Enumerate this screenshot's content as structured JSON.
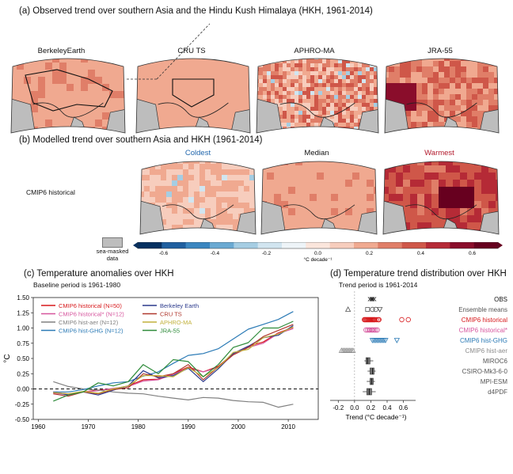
{
  "panel_a": {
    "title": "(a) Observed trend over southern Asia and the Hindu Kush Himalaya (HKH, 1961-2014)",
    "maps": [
      "BerkeleyEarth",
      "CRU TS",
      "APHRO-MA",
      "JRA-55"
    ]
  },
  "panel_b": {
    "title": "(b) Modelled trend over southern Asia and HKH (1961-2014)",
    "row_label": "CMIP6 historical",
    "maps": [
      {
        "label": "Coldest",
        "color": "#2166ac"
      },
      {
        "label": "Median",
        "color": "#111111"
      },
      {
        "label": "Warmest",
        "color": "#b2182b"
      }
    ]
  },
  "colorbar": {
    "ticks": [
      "-0.6",
      "-0.4",
      "-0.2",
      "0.0",
      "0.2",
      "0.4",
      "0.6"
    ],
    "unit": "°C decade⁻¹",
    "sea_mask_label": [
      "sea-masked",
      "data"
    ],
    "colors": [
      "#053061",
      "#1f5f9f",
      "#3b86c0",
      "#6aa9d2",
      "#a5cde3",
      "#d1e5f0",
      "#eef4f8",
      "#fbe6dc",
      "#f7cdbd",
      "#f0a990",
      "#e07e68",
      "#cf5749",
      "#b52a36",
      "#8a0d2b",
      "#67001f"
    ]
  },
  "chart_data": [
    {
      "type": "line",
      "title": "(c) Temperature anomalies over HKH",
      "subtitle": "Baseline period is 1961-1980",
      "ylabel": "°C",
      "xlim": [
        1959,
        2016
      ],
      "ylim": [
        -0.5,
        1.5
      ],
      "xticks": [
        "1960",
        "1970",
        "1980",
        "1990",
        "2000",
        "2010"
      ],
      "yticks": [
        "1.50",
        "1.25",
        "1.00",
        "0.75",
        "0.50",
        "0.25",
        "0.00",
        "-0.25",
        "-0.50"
      ],
      "x": [
        1963,
        1966,
        1969,
        1972,
        1975,
        1978,
        1981,
        1984,
        1987,
        1990,
        1993,
        1996,
        1999,
        2002,
        2005,
        2008,
        2011
      ],
      "series": [
        {
          "name": "CMIP6 historical (N=50)",
          "color": "#d7191c",
          "values": [
            -0.06,
            -0.08,
            -0.05,
            -0.02,
            0.0,
            0.05,
            0.15,
            0.16,
            0.25,
            0.36,
            0.28,
            0.37,
            0.58,
            0.7,
            0.77,
            0.92,
            1.01
          ]
        },
        {
          "name": "CMIP6 historical* (N=12)",
          "color": "#d6569e",
          "values": [
            -0.07,
            -0.09,
            -0.05,
            -0.03,
            0.01,
            0.04,
            0.13,
            0.15,
            0.24,
            0.34,
            0.28,
            0.35,
            0.56,
            0.68,
            0.75,
            0.91,
            0.99
          ]
        },
        {
          "name": "CMIP6 hist-aer (N=12)",
          "color": "#808080",
          "values": [
            0.12,
            0.04,
            0.0,
            -0.02,
            -0.05,
            -0.07,
            -0.08,
            -0.12,
            -0.15,
            -0.18,
            -0.14,
            -0.15,
            -0.19,
            -0.21,
            -0.22,
            -0.3,
            -0.25
          ]
        },
        {
          "name": "CMIP6 hist-GHG (N=12)",
          "color": "#2c7bb6",
          "values": [
            -0.05,
            -0.05,
            -0.01,
            0.05,
            0.1,
            0.12,
            0.21,
            0.28,
            0.42,
            0.55,
            0.58,
            0.66,
            0.82,
            0.98,
            1.06,
            1.14,
            1.27
          ]
        },
        {
          "name": "Berkeley Earth",
          "color": "#2b3a8c",
          "values": [
            -0.05,
            -0.1,
            -0.05,
            -0.1,
            -0.02,
            0.05,
            0.3,
            0.18,
            0.22,
            0.34,
            0.12,
            0.33,
            0.58,
            0.7,
            0.84,
            0.88,
            1.04
          ]
        },
        {
          "name": "CRU TS",
          "color": "#b0392f",
          "values": [
            -0.08,
            -0.12,
            -0.05,
            -0.08,
            -0.01,
            0.02,
            0.25,
            0.2,
            0.25,
            0.4,
            0.15,
            0.36,
            0.56,
            0.68,
            0.86,
            0.96,
            1.06
          ]
        },
        {
          "name": "APHRO-MA",
          "color": "#c2b13b",
          "values": [
            -0.06,
            -0.08,
            -0.04,
            -0.07,
            0.0,
            0.05,
            0.22,
            0.22,
            0.2,
            0.35,
            0.2,
            0.35,
            0.6,
            0.65,
            0.84,
            0.9,
            1.02
          ]
        },
        {
          "name": "JRA-55",
          "color": "#2e8b3a",
          "values": [
            -0.2,
            -0.1,
            -0.05,
            0.1,
            0.05,
            0.12,
            0.4,
            0.25,
            0.48,
            0.45,
            0.2,
            0.4,
            0.68,
            0.76,
            1.0,
            1.0,
            1.11
          ]
        }
      ]
    },
    {
      "type": "scatter",
      "title": "(d) Temperature trend distribution over HKH",
      "subtitle": "Trend period is 1961-2014",
      "xlabel": "Trend (°C decade⁻¹)",
      "xlim": [
        -0.3,
        0.75
      ],
      "xticks": [
        "-0.2",
        "0.0",
        "0.2",
        "0.4",
        "0.6"
      ],
      "rows": [
        {
          "name": "OBS",
          "color": "#111111",
          "marker": "x",
          "values": [
            0.19,
            0.21,
            0.22,
            0.24
          ]
        },
        {
          "name": "Ensemble means",
          "color": "#555555",
          "marker": "mixed",
          "values": [
            -0.08,
            0.16,
            0.22,
            0.26,
            0.31
          ]
        },
        {
          "name": "CMIP6 historical",
          "color": "#d7191c",
          "marker": "circle",
          "values": [
            0.12,
            0.13,
            0.14,
            0.15,
            0.16,
            0.17,
            0.18,
            0.19,
            0.2,
            0.21,
            0.22,
            0.23,
            0.24,
            0.25,
            0.27,
            0.29,
            0.3,
            0.58,
            0.66
          ]
        },
        {
          "name": "CMIP6 historical*",
          "color": "#d6569e",
          "marker": "circle",
          "values": [
            0.14,
            0.16,
            0.18,
            0.19,
            0.21,
            0.22,
            0.24,
            0.26,
            0.28
          ]
        },
        {
          "name": "CMIP6 hist-GHG",
          "color": "#2c7bb6",
          "marker": "triangle-down",
          "values": [
            0.22,
            0.24,
            0.26,
            0.28,
            0.3,
            0.32,
            0.34,
            0.36,
            0.38,
            0.52
          ]
        },
        {
          "name": "CMIP6 hist-aer",
          "color": "#8c8c8c",
          "marker": "triangle-up",
          "values": [
            -0.16,
            -0.14,
            -0.12,
            -0.1,
            -0.08,
            -0.06,
            -0.04,
            -0.02
          ]
        },
        {
          "name": "MIROC6",
          "color": "#555555",
          "marker": "box",
          "box": [
            0.12,
            0.14,
            0.16,
            0.19,
            0.23
          ]
        },
        {
          "name": "CSIRO-Mk3-6-0",
          "color": "#555555",
          "marker": "box",
          "box": [
            0.16,
            0.19,
            0.22,
            0.24,
            0.26
          ]
        },
        {
          "name": "MPI-ESM",
          "color": "#555555",
          "marker": "box",
          "box": [
            0.15,
            0.19,
            0.21,
            0.23,
            0.25
          ]
        },
        {
          "name": "d4PDF",
          "color": "#555555",
          "marker": "box",
          "box": [
            0.1,
            0.15,
            0.18,
            0.21,
            0.26
          ]
        }
      ]
    }
  ]
}
